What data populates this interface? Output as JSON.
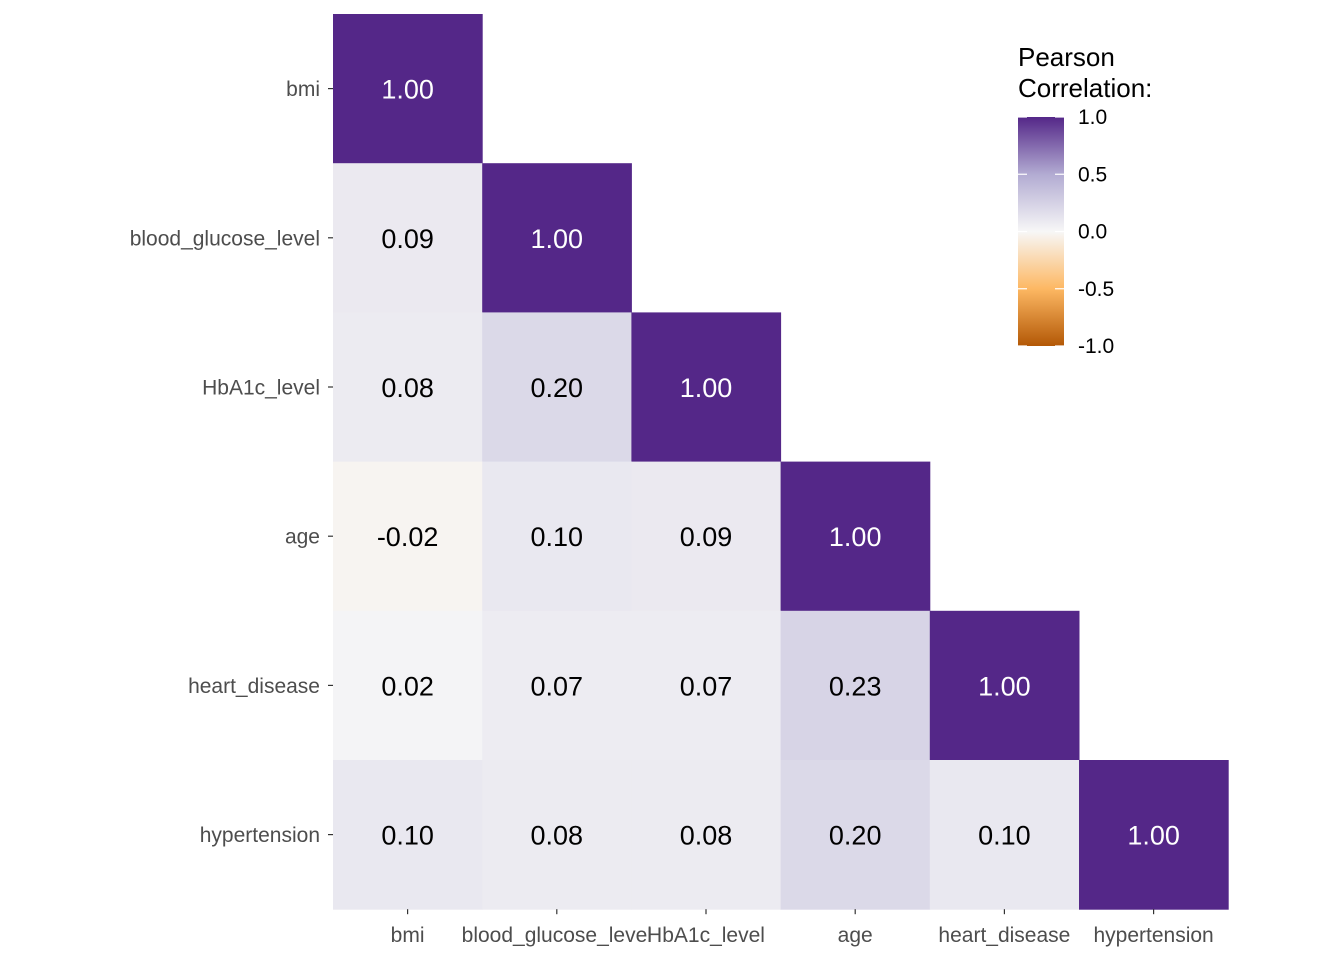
{
  "chart_data": {
    "type": "heatmap",
    "variables": [
      "bmi",
      "blood_glucose_level",
      "HbA1c_level",
      "age",
      "heart_disease",
      "hypertension"
    ],
    "x_tick_labels": [
      "bmi",
      "blood_glucose_level",
      "HbA1c_level",
      "age",
      "heart_disease",
      "hypertension"
    ],
    "y_tick_labels": [
      "bmi",
      "blood_glucose_level",
      "HbA1c_level",
      "age",
      "heart_disease",
      "hypertension"
    ],
    "triangle": "lower",
    "matrix": [
      [
        1.0,
        null,
        null,
        null,
        null,
        null
      ],
      [
        0.09,
        1.0,
        null,
        null,
        null,
        null
      ],
      [
        0.08,
        0.2,
        1.0,
        null,
        null,
        null
      ],
      [
        -0.02,
        0.1,
        0.09,
        1.0,
        null,
        null
      ],
      [
        0.02,
        0.07,
        0.07,
        0.23,
        1.0,
        null
      ],
      [
        0.1,
        0.08,
        0.08,
        0.2,
        0.1,
        1.0
      ]
    ],
    "value_format_decimals": 2,
    "color_scale": {
      "type": "diverging",
      "limits": [
        -1.0,
        1.0
      ],
      "low_color": "#b35806",
      "mid_low_color": "#fdb863",
      "mid_color": "#f7f7f7",
      "mid_high_color": "#b2abd2",
      "high_color": "#542788"
    },
    "legend": {
      "title_lines": [
        "Pearson",
        "Correlation:"
      ],
      "breaks": [
        1.0,
        0.5,
        0.0,
        -0.5,
        -1.0
      ],
      "break_labels": [
        "1.0",
        "0.5",
        "0.0",
        "-0.5",
        "-1.0"
      ],
      "placement": "top-right"
    },
    "title": "",
    "xlabel": "",
    "ylabel": "",
    "grid": false
  }
}
